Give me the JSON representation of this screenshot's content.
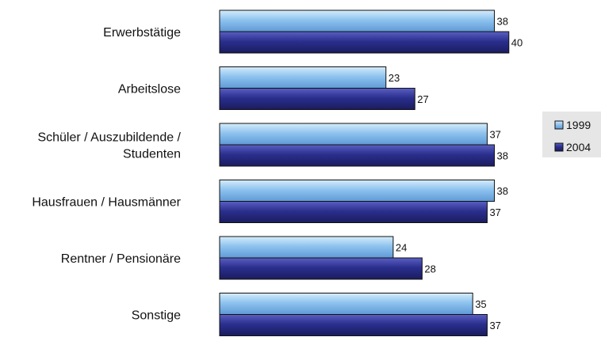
{
  "chart_data": {
    "type": "bar",
    "orientation": "horizontal",
    "title": "",
    "xlabel": "",
    "ylabel": "",
    "xlim": [
      0,
      45
    ],
    "grid": false,
    "legend_position": "right",
    "categories": [
      [
        "Erwerbstätige"
      ],
      [
        "Arbeitslose"
      ],
      [
        "Schüler / Auszubildende /",
        "Studenten"
      ],
      [
        "Hausfrauen / Hausmänner"
      ],
      [
        "Rentner / Pensionäre"
      ],
      [
        "Sonstige"
      ]
    ],
    "series": [
      {
        "name": "1999",
        "color": "#8ec3ef",
        "values": [
          38,
          23,
          37,
          38,
          24,
          35
        ]
      },
      {
        "name": "2004",
        "color": "#2b2f8e",
        "values": [
          40,
          27,
          38,
          37,
          28,
          37
        ]
      }
    ]
  }
}
